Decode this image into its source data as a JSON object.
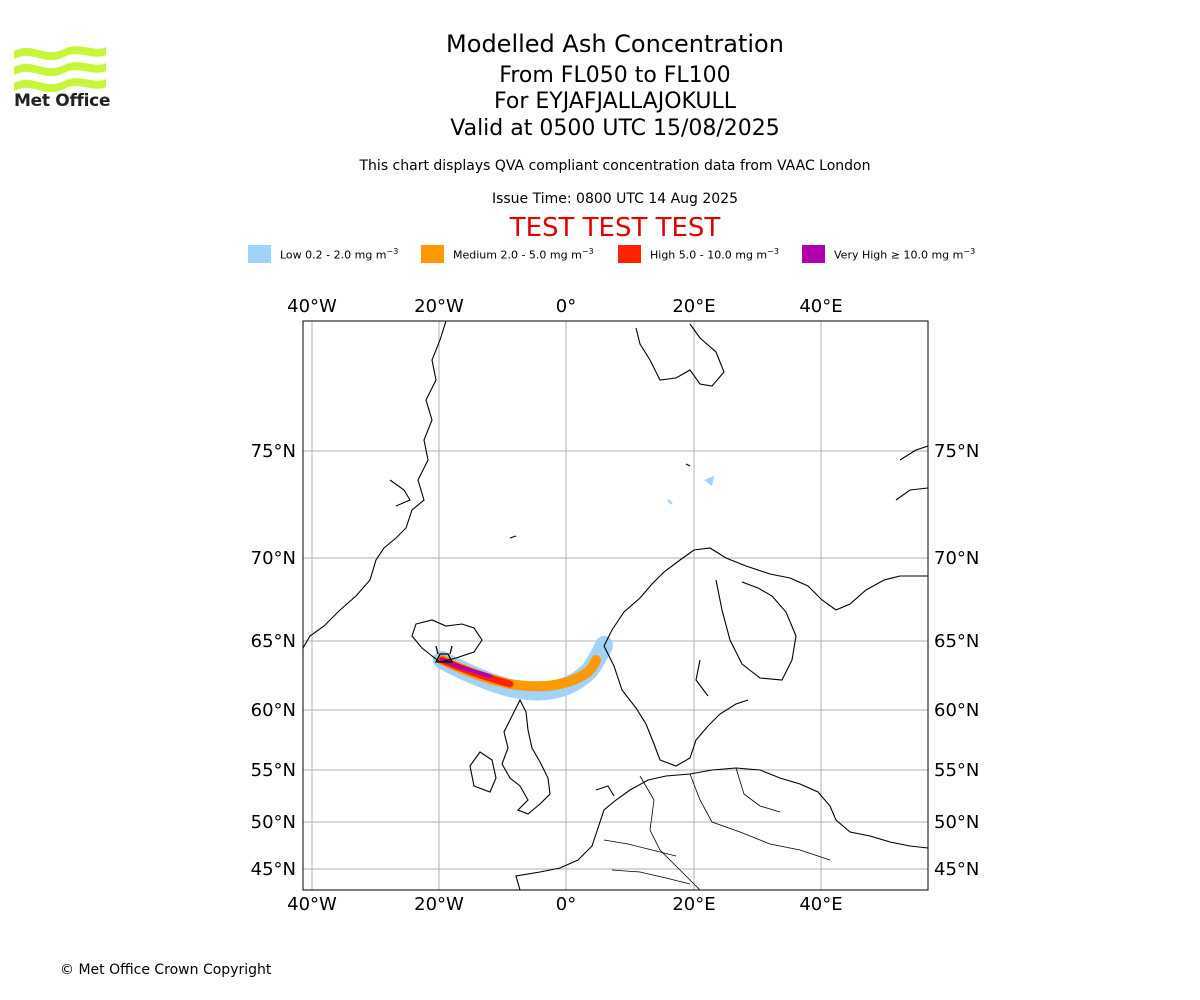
{
  "logo": {
    "text": "Met Office",
    "color": "#c8f53a"
  },
  "header": {
    "title": "Modelled Ash Concentration",
    "level_range": "From FL050 to FL100",
    "volcano": "For EYJAFJALLAJOKULL",
    "valid_time": "Valid at 0500 UTC 15/08/2025",
    "note": "This chart displays QVA compliant concentration data from VAAC London",
    "issue_time": "Issue Time: 0800 UTC 14 Aug 2025",
    "test_banner": "TEST TEST TEST",
    "test_color": "#e00000"
  },
  "legend": [
    {
      "prefix": "Low 0.2 - 2.0 mg m",
      "color": "#a0d2fa"
    },
    {
      "prefix": "Medium 2.0 - 5.0 mg m",
      "color": "#ff9900"
    },
    {
      "prefix": "High 5.0 - 10.0 mg m",
      "color": "#ff2200"
    },
    {
      "prefix": "Very High ≥ 10.0 mg m",
      "color": "#b000b0"
    }
  ],
  "legend_exponent": "−3",
  "map": {
    "lon_labels": [
      "40°W",
      "20°W",
      "0°",
      "20°E",
      "40°E"
    ],
    "lat_labels": [
      "75°N",
      "70°N",
      "65°N",
      "60°N",
      "55°N",
      "50°N",
      "45°N"
    ],
    "lon_range": [
      -41.5,
      56
    ],
    "lat_range": [
      43.5,
      81
    ],
    "volcano_position": {
      "lon": -19.6,
      "lat": 63.6
    }
  },
  "footer": {
    "copyright": "© Met Office Crown Copyright"
  }
}
